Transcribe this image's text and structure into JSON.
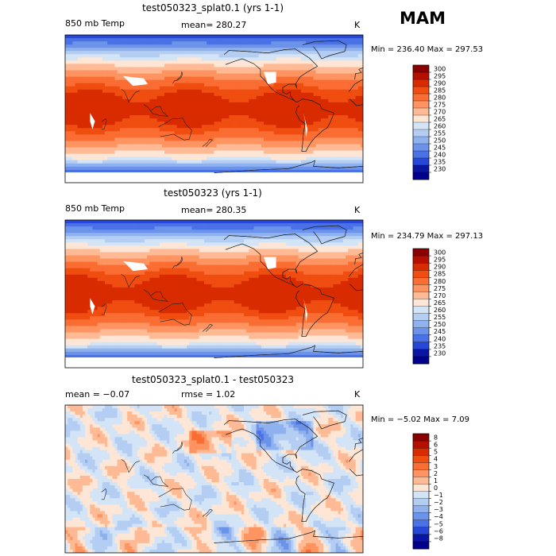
{
  "season": "MAM",
  "chart_data": [
    {
      "type": "heatmap",
      "title": "test050323_splat0.1 (yrs 1-1)",
      "variable": "850 mb Temp",
      "stat_text": "mean=  280.27",
      "units": "K",
      "range_text": "Min = 236.40 Max = 297.53",
      "min": 236.4,
      "max": 297.53,
      "mean": 280.27,
      "levels": [
        "300",
        "295",
        "290",
        "285",
        "280",
        "275",
        "270",
        "265",
        "260",
        "255",
        "250",
        "245",
        "240",
        "235",
        "230"
      ],
      "colors": [
        "#8b0000",
        "#b50f00",
        "#d92b00",
        "#f04d10",
        "#fa6d33",
        "#fd9461",
        "#feba95",
        "#fde6d5",
        "#d4e4f7",
        "#b4cdf2",
        "#8fb2ee",
        "#6c93ea",
        "#4a71e6",
        "#2747d8",
        "#0a15a4",
        "#00008b"
      ]
    },
    {
      "type": "heatmap",
      "title": "test050323 (yrs 1-1)",
      "variable": "850 mb Temp",
      "stat_text": "mean=  280.35",
      "units": "K",
      "range_text": "Min = 234.79 Max = 297.13",
      "min": 234.79,
      "max": 297.13,
      "mean": 280.35,
      "levels": [
        "300",
        "295",
        "290",
        "285",
        "280",
        "275",
        "270",
        "265",
        "260",
        "255",
        "250",
        "245",
        "240",
        "235",
        "230"
      ],
      "colors": [
        "#8b0000",
        "#b50f00",
        "#d92b00",
        "#f04d10",
        "#fa6d33",
        "#fd9461",
        "#feba95",
        "#fde6d5",
        "#d4e4f7",
        "#b4cdf2",
        "#8fb2ee",
        "#6c93ea",
        "#4a71e6",
        "#2747d8",
        "#0a15a4",
        "#00008b"
      ]
    },
    {
      "type": "heatmap",
      "title": "test050323_splat0.1 - test050323",
      "stat_left_text": "mean =   −0.07",
      "stat_mid_text": "rmse =    1.02",
      "units": "K",
      "range_text": "Min =  −5.02 Max =   7.09",
      "min": -5.02,
      "max": 7.09,
      "mean": -0.07,
      "rmse": 1.02,
      "levels": [
        "8",
        "6",
        "5",
        "4",
        "3",
        "2",
        "1",
        "0",
        "−1",
        "−2",
        "−3",
        "−4",
        "−5",
        "−6",
        "−8"
      ],
      "colors": [
        "#8b0000",
        "#b50f00",
        "#d92b00",
        "#f04d10",
        "#fa6d33",
        "#fd9461",
        "#feba95",
        "#fde6d5",
        "#d4e4f7",
        "#b4cdf2",
        "#8fb2ee",
        "#6c93ea",
        "#4a71e6",
        "#2747d8",
        "#0a15a4",
        "#00008b"
      ]
    }
  ]
}
